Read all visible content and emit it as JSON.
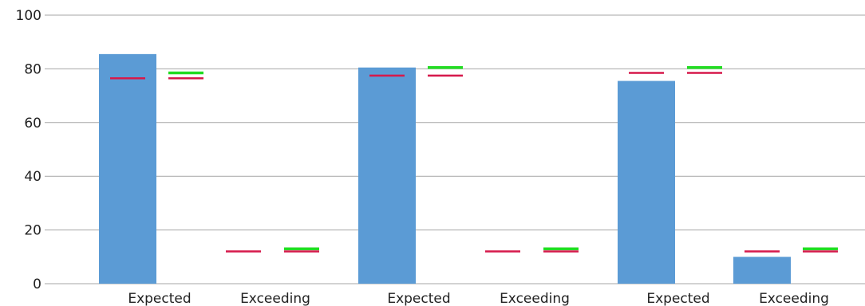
{
  "chart_data": {
    "type": "bar",
    "categories": [
      "Expected",
      "Exceeding",
      "Expected",
      "Exceeding",
      "Expected",
      "Exceeding"
    ],
    "values": [
      85.5,
      0,
      80.5,
      0,
      75.5,
      10
    ],
    "ylim": [
      0,
      100
    ],
    "yticks": [
      0,
      20,
      40,
      60,
      80,
      100
    ],
    "grid": true,
    "bar_color": "#5b9bd5",
    "markers": [
      {
        "category_index": 0,
        "red": 76.5,
        "green": null
      },
      {
        "category_index": 0,
        "red": 76.5,
        "green": 78.5,
        "offset": "right"
      },
      {
        "category_index": 1,
        "red": 12,
        "green": null
      },
      {
        "category_index": 1,
        "red": 12,
        "green": 13,
        "offset": "right"
      },
      {
        "category_index": 2,
        "red": 77.5,
        "green": null
      },
      {
        "category_index": 2,
        "red": 77.5,
        "green": 80.5,
        "offset": "right"
      },
      {
        "category_index": 3,
        "red": 12,
        "green": null
      },
      {
        "category_index": 3,
        "red": 12,
        "green": 13,
        "offset": "right"
      },
      {
        "category_index": 4,
        "red": 78.5,
        "green": null
      },
      {
        "category_index": 4,
        "red": 78.5,
        "green": 80.5,
        "offset": "right"
      },
      {
        "category_index": 5,
        "red": 12,
        "green": null
      },
      {
        "category_index": 5,
        "red": 12,
        "green": 13,
        "offset": "right"
      }
    ],
    "marker_colors": {
      "red": "#d6194b",
      "green": "#22dd22"
    }
  }
}
